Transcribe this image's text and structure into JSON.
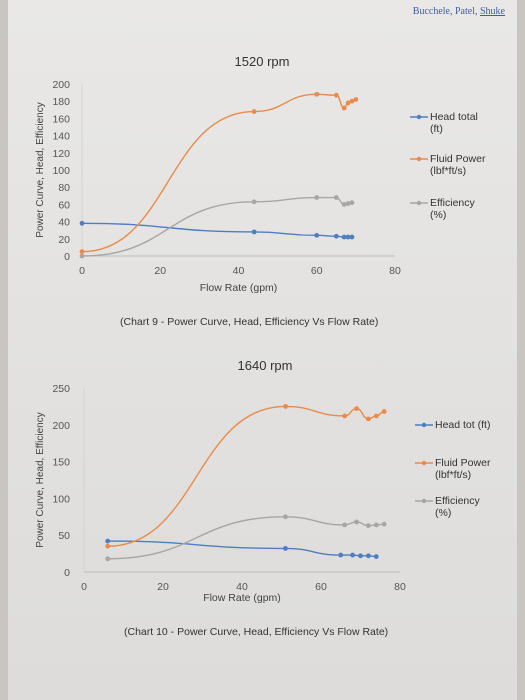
{
  "header": {
    "authors": "Bucchele, Patel,",
    "last_author": "Shuke"
  },
  "captions": [
    "(Chart 9 - Power Curve, Head, Efficiency Vs Flow Rate)",
    "(Chart 10 - Power Curve, Head, Efficiency Vs Flow Rate)"
  ],
  "colors": {
    "head": "#4e7ec2",
    "fluid_power": "#ea8a4b",
    "efficiency": "#a6a6a6"
  },
  "chart_data": [
    {
      "type": "line",
      "title": "1520 rpm",
      "xlabel": "Flow Rate (gpm)",
      "ylabel": "Power Curve, Head, Efficiency",
      "xlim": [
        0,
        80
      ],
      "ylim": [
        0,
        200
      ],
      "xticks": [
        "0",
        "20",
        "40",
        "60",
        "80"
      ],
      "yticks": [
        "0",
        "20",
        "40",
        "60",
        "80",
        "100",
        "120",
        "140",
        "160",
        "180",
        "200"
      ],
      "legend_position": "right",
      "series": [
        {
          "name": "Head total (ft)",
          "legend_lines": [
            "Head total",
            "(ft)"
          ],
          "color": "#4e7ec2",
          "x": [
            0,
            44,
            60,
            65,
            67,
            68,
            69
          ],
          "y": [
            38,
            28,
            24,
            23,
            22,
            22,
            22
          ]
        },
        {
          "name": "Fluid Power (lbf*ft/s)",
          "legend_lines": [
            "Fluid Power",
            "(lbf*ft/s)"
          ],
          "color": "#ea8a4b",
          "x": [
            0,
            44,
            60,
            65,
            67,
            68,
            69,
            70
          ],
          "y": [
            5,
            168,
            188,
            187,
            172,
            178,
            180,
            182
          ]
        },
        {
          "name": "Efficiency (%)",
          "legend_lines": [
            "Efficiency",
            "(%)"
          ],
          "color": "#a6a6a6",
          "x": [
            0,
            44,
            60,
            65,
            67,
            68,
            69
          ],
          "y": [
            0,
            63,
            68,
            68,
            60,
            61,
            62
          ]
        }
      ]
    },
    {
      "type": "line",
      "title": "1640 rpm",
      "xlabel": "Flow Rate (gpm)",
      "ylabel": "Power Curve, Head, Efficiency",
      "xlim": [
        0,
        80
      ],
      "ylim": [
        0,
        250
      ],
      "xticks": [
        "0",
        "20",
        "40",
        "60",
        "80"
      ],
      "yticks": [
        "0",
        "50",
        "100",
        "150",
        "200",
        "250"
      ],
      "legend_position": "right",
      "series": [
        {
          "name": "Head tot (ft)",
          "legend_lines": [
            "Head tot (ft)"
          ],
          "color": "#4e7ec2",
          "x": [
            6,
            51,
            65,
            68,
            70,
            72,
            74
          ],
          "y": [
            42,
            32,
            23,
            23,
            22,
            22,
            21
          ]
        },
        {
          "name": "Fluid Power (lbf*ft/s)",
          "legend_lines": [
            "Fluid Power",
            "(lbf*ft/s)"
          ],
          "color": "#ea8a4b",
          "x": [
            6,
            51,
            66,
            69,
            72,
            74,
            76
          ],
          "y": [
            35,
            225,
            212,
            222,
            208,
            212,
            218
          ]
        },
        {
          "name": "Efficiency (%)",
          "legend_lines": [
            "Efficiency",
            "(%)"
          ],
          "color": "#a6a6a6",
          "x": [
            6,
            51,
            66,
            69,
            72,
            74,
            76
          ],
          "y": [
            18,
            75,
            64,
            68,
            63,
            64,
            65
          ]
        }
      ]
    }
  ]
}
